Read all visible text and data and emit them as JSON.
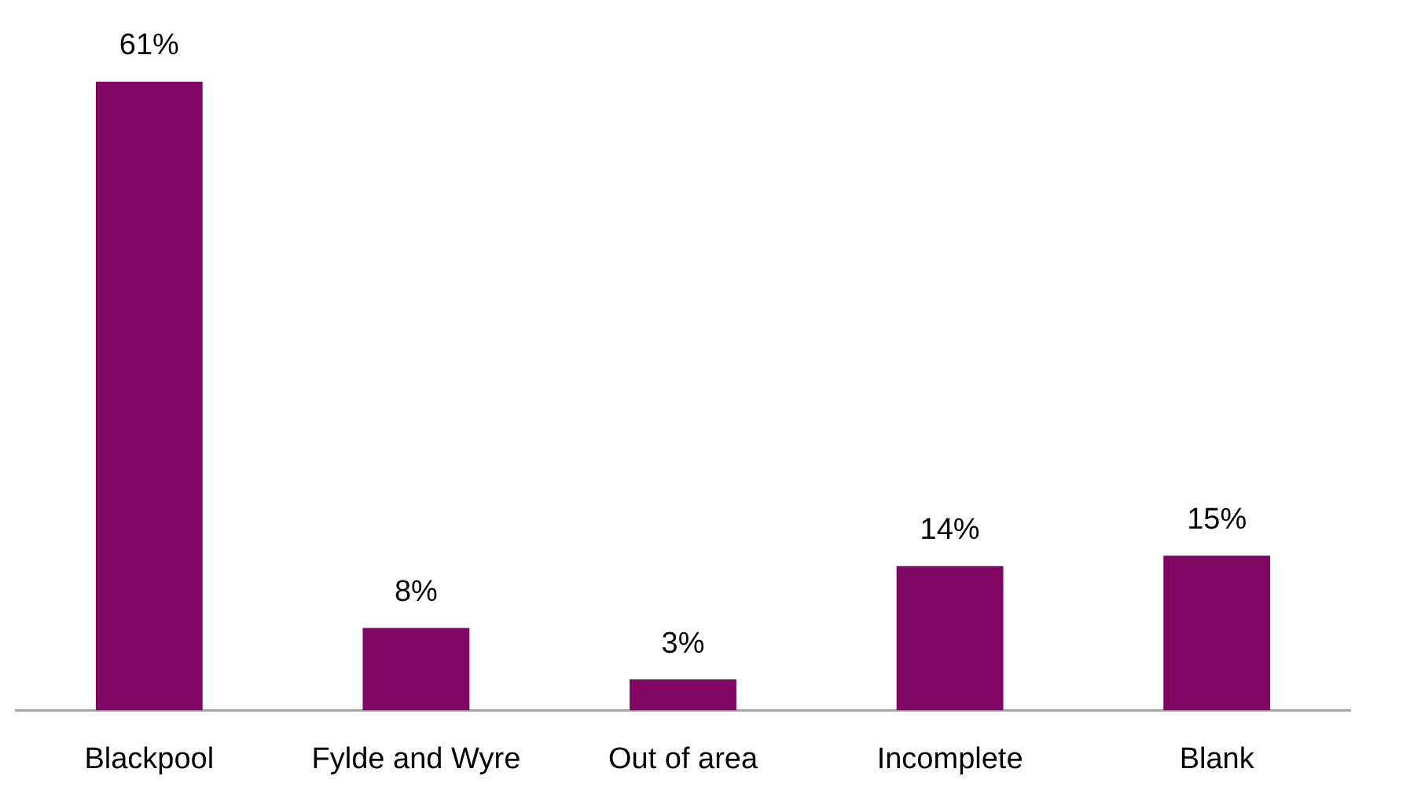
{
  "chart_data": {
    "type": "bar",
    "categories": [
      "Blackpool",
      "Fylde and Wyre",
      "Out of area",
      "Incomplete",
      "Blank"
    ],
    "values": [
      61,
      8,
      3,
      14,
      15
    ],
    "value_labels": [
      "61%",
      "8%",
      "3%",
      "14%",
      "15%"
    ],
    "color": "#7f0662",
    "tick_labels": "x",
    "grid": false,
    "legend": false
  }
}
